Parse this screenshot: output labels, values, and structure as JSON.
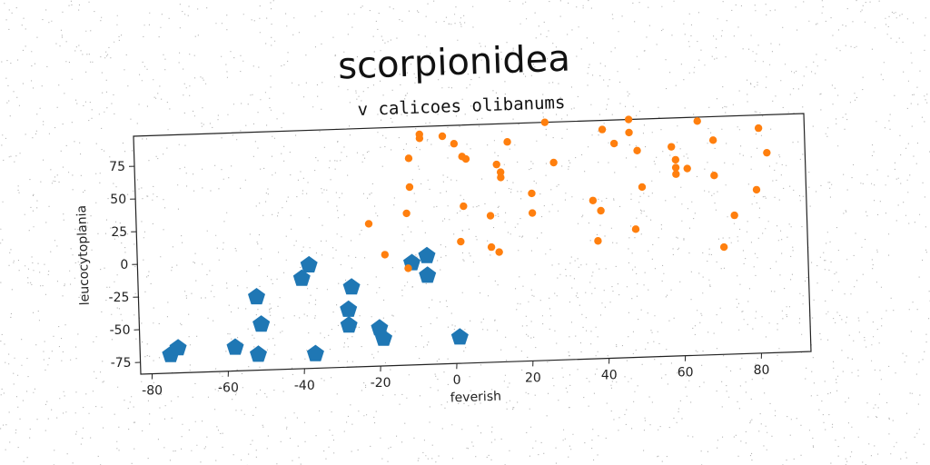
{
  "chart_data": {
    "type": "scatter",
    "title": "scorpionidea",
    "subtitle": "v calicoes olibanums",
    "xlabel": "feverish",
    "ylabel": "leucocytoplania",
    "xlim": [
      -83,
      93
    ],
    "ylim": [
      -84,
      98
    ],
    "xticks": [
      -80,
      -60,
      -40,
      -20,
      0,
      20,
      40,
      60,
      80
    ],
    "yticks": [
      -75,
      -50,
      -25,
      0,
      25,
      50,
      75
    ],
    "grid": false,
    "series": [
      {
        "color": "#1f77b4",
        "marker": "pentagon",
        "points": [
          [
            -75,
            -70
          ],
          [
            -73,
            -65
          ],
          [
            -58,
            -66
          ],
          [
            -52,
            -72
          ],
          [
            -51,
            -49
          ],
          [
            -52,
            -28
          ],
          [
            -38,
            -5
          ],
          [
            -40,
            -15
          ],
          [
            -37,
            -73
          ],
          [
            -28,
            -40
          ],
          [
            -28,
            -52
          ],
          [
            -27,
            -23
          ],
          [
            -20,
            -55
          ],
          [
            -19,
            -63
          ],
          [
            -11,
            -6
          ],
          [
            -7,
            -1
          ],
          [
            -7,
            -16
          ],
          [
            1,
            -64
          ]
        ]
      },
      {
        "color": "#ff7f0e",
        "marker": "circle",
        "points": [
          [
            -22,
            25
          ],
          [
            -18,
            1
          ],
          [
            -12,
            -10
          ],
          [
            -12,
            32
          ],
          [
            -11,
            52
          ],
          [
            -11,
            74
          ],
          [
            -8,
            89
          ],
          [
            -8,
            92
          ],
          [
            -2,
            90
          ],
          [
            1,
            84
          ],
          [
            3,
            74
          ],
          [
            4,
            72
          ],
          [
            3,
            36
          ],
          [
            2,
            9
          ],
          [
            10,
            28
          ],
          [
            10,
            4
          ],
          [
            12,
            0
          ],
          [
            12,
            67
          ],
          [
            13,
            61
          ],
          [
            13,
            57
          ],
          [
            15,
            84
          ],
          [
            21,
            44
          ],
          [
            21,
            29
          ],
          [
            25,
            98
          ],
          [
            27,
            67
          ],
          [
            37,
            37
          ],
          [
            38,
            6
          ],
          [
            39,
            29
          ],
          [
            40,
            91
          ],
          [
            43,
            80
          ],
          [
            47,
            98
          ],
          [
            47,
            88
          ],
          [
            48,
            14
          ],
          [
            49,
            74
          ],
          [
            50,
            46
          ],
          [
            58,
            76
          ],
          [
            59,
            66
          ],
          [
            59,
            60
          ],
          [
            59,
            55
          ],
          [
            62,
            59
          ],
          [
            65,
            95
          ],
          [
            69,
            80
          ],
          [
            69,
            53
          ],
          [
            71,
            -2
          ],
          [
            74,
            22
          ],
          [
            80,
            41
          ],
          [
            81,
            88
          ],
          [
            83,
            69
          ]
        ]
      }
    ]
  }
}
